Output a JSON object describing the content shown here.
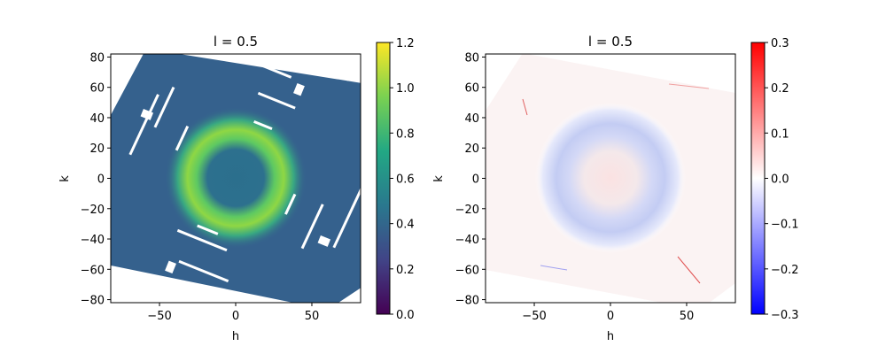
{
  "chart_data": [
    {
      "type": "heatmap",
      "title": "l = 0.5",
      "xlabel": "h",
      "ylabel": "k",
      "xlim": [
        -82,
        82
      ],
      "ylim": [
        -82,
        82
      ],
      "x_ticks": [
        -50,
        0,
        50
      ],
      "y_ticks": [
        -80,
        -60,
        -40,
        -20,
        0,
        20,
        40,
        60,
        80
      ],
      "colormap": "viridis",
      "colorbar": {
        "min": 0.0,
        "max": 1.2,
        "ticks": [
          "0.0",
          "0.2",
          "0.4",
          "0.6",
          "0.8",
          "1.0",
          "1.2"
        ]
      },
      "background_level": 0.45,
      "ring": {
        "radius": 25,
        "width": 6,
        "peak": 0.95
      },
      "center_level": 0.38,
      "grid": false
    },
    {
      "type": "heatmap",
      "title": "l = 0.5",
      "xlabel": "h",
      "ylabel": "k",
      "xlim": [
        -82,
        82
      ],
      "ylim": [
        -82,
        82
      ],
      "x_ticks": [
        -50,
        0,
        50
      ],
      "y_ticks": [
        -80,
        -60,
        -40,
        -20,
        0,
        20,
        40,
        60,
        80
      ],
      "colormap": "bwr",
      "colorbar": {
        "min": -0.3,
        "max": 0.3,
        "ticks": [
          "0.3",
          "0.2",
          "0.1",
          "0.0",
          "−0.1",
          "−0.2",
          "−0.3"
        ]
      },
      "background_level": 0.01,
      "ring": {
        "radius": 28,
        "width": 10,
        "peak": -0.08
      },
      "center_level": 0.03,
      "grid": false
    }
  ],
  "colors": {
    "viridis": [
      "#440154",
      "#414487",
      "#2a788e",
      "#22a884",
      "#7ad151",
      "#fde725"
    ],
    "bwr": [
      "#0000ff",
      "#ffffff",
      "#ff0000"
    ]
  }
}
